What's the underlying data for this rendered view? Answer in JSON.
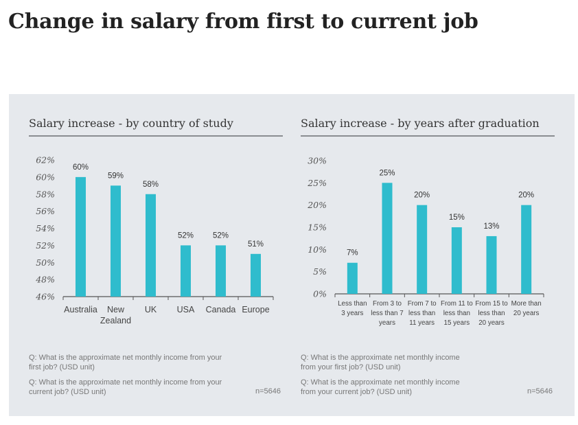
{
  "page_title": "Change in salary from first to current job",
  "colors": {
    "bar": "#2fbccd",
    "panel": "#e6e9ed",
    "axis": "#555555"
  },
  "chart_data": [
    {
      "type": "bar",
      "title": "Salary increase - by country of study",
      "categories": [
        [
          "Australia"
        ],
        [
          "New",
          "Zealand"
        ],
        [
          "UK"
        ],
        [
          "USA"
        ],
        [
          "Canada"
        ],
        [
          "Europe"
        ]
      ],
      "values": [
        60,
        59,
        58,
        52,
        52,
        51
      ],
      "value_labels": [
        "60%",
        "59%",
        "58%",
        "52%",
        "52%",
        "51%"
      ],
      "ylim": [
        46,
        62
      ],
      "yticks": [
        "62%",
        "60%",
        "58%",
        "56%",
        "54%",
        "52%",
        "50%",
        "48%",
        "46%"
      ],
      "xlabel": "",
      "ylabel": "",
      "grid": false
    },
    {
      "type": "bar",
      "title": "Salary increase - by years after graduation",
      "categories": [
        [
          "Less than",
          "3 years"
        ],
        [
          "From 3 to",
          "less than 7",
          "years"
        ],
        [
          "From 7 to",
          "less than",
          "11 years"
        ],
        [
          "From 11 to",
          "less than",
          "15 years"
        ],
        [
          "From 15 to",
          "less than",
          "20 years"
        ],
        [
          "More than",
          "20 years"
        ]
      ],
      "values": [
        7,
        25,
        20,
        15,
        13,
        20
      ],
      "value_labels": [
        "7%",
        "25%",
        "20%",
        "15%",
        "13%",
        "20%"
      ],
      "ylim": [
        0,
        30
      ],
      "yticks": [
        "30%",
        "25%",
        "20%",
        "15%",
        "10%",
        "5%",
        "0%"
      ],
      "xlabel": "",
      "ylabel": "",
      "grid": false
    }
  ],
  "footnotes": {
    "left": {
      "q1": [
        "Q: What is the approximate net monthly income from your",
        "first job? (USD unit)"
      ],
      "q2": [
        "Q: What is the approximate net monthly income from your",
        "current  job? (USD unit)"
      ],
      "n": "n=5646"
    },
    "right": {
      "q1": [
        "Q: What is the approximate net monthly income",
        "from your first job? (USD unit)"
      ],
      "q2": [
        "Q: What is the approximate net monthly income",
        "from your current  job? (USD unit)"
      ],
      "n": "n=5646"
    }
  }
}
